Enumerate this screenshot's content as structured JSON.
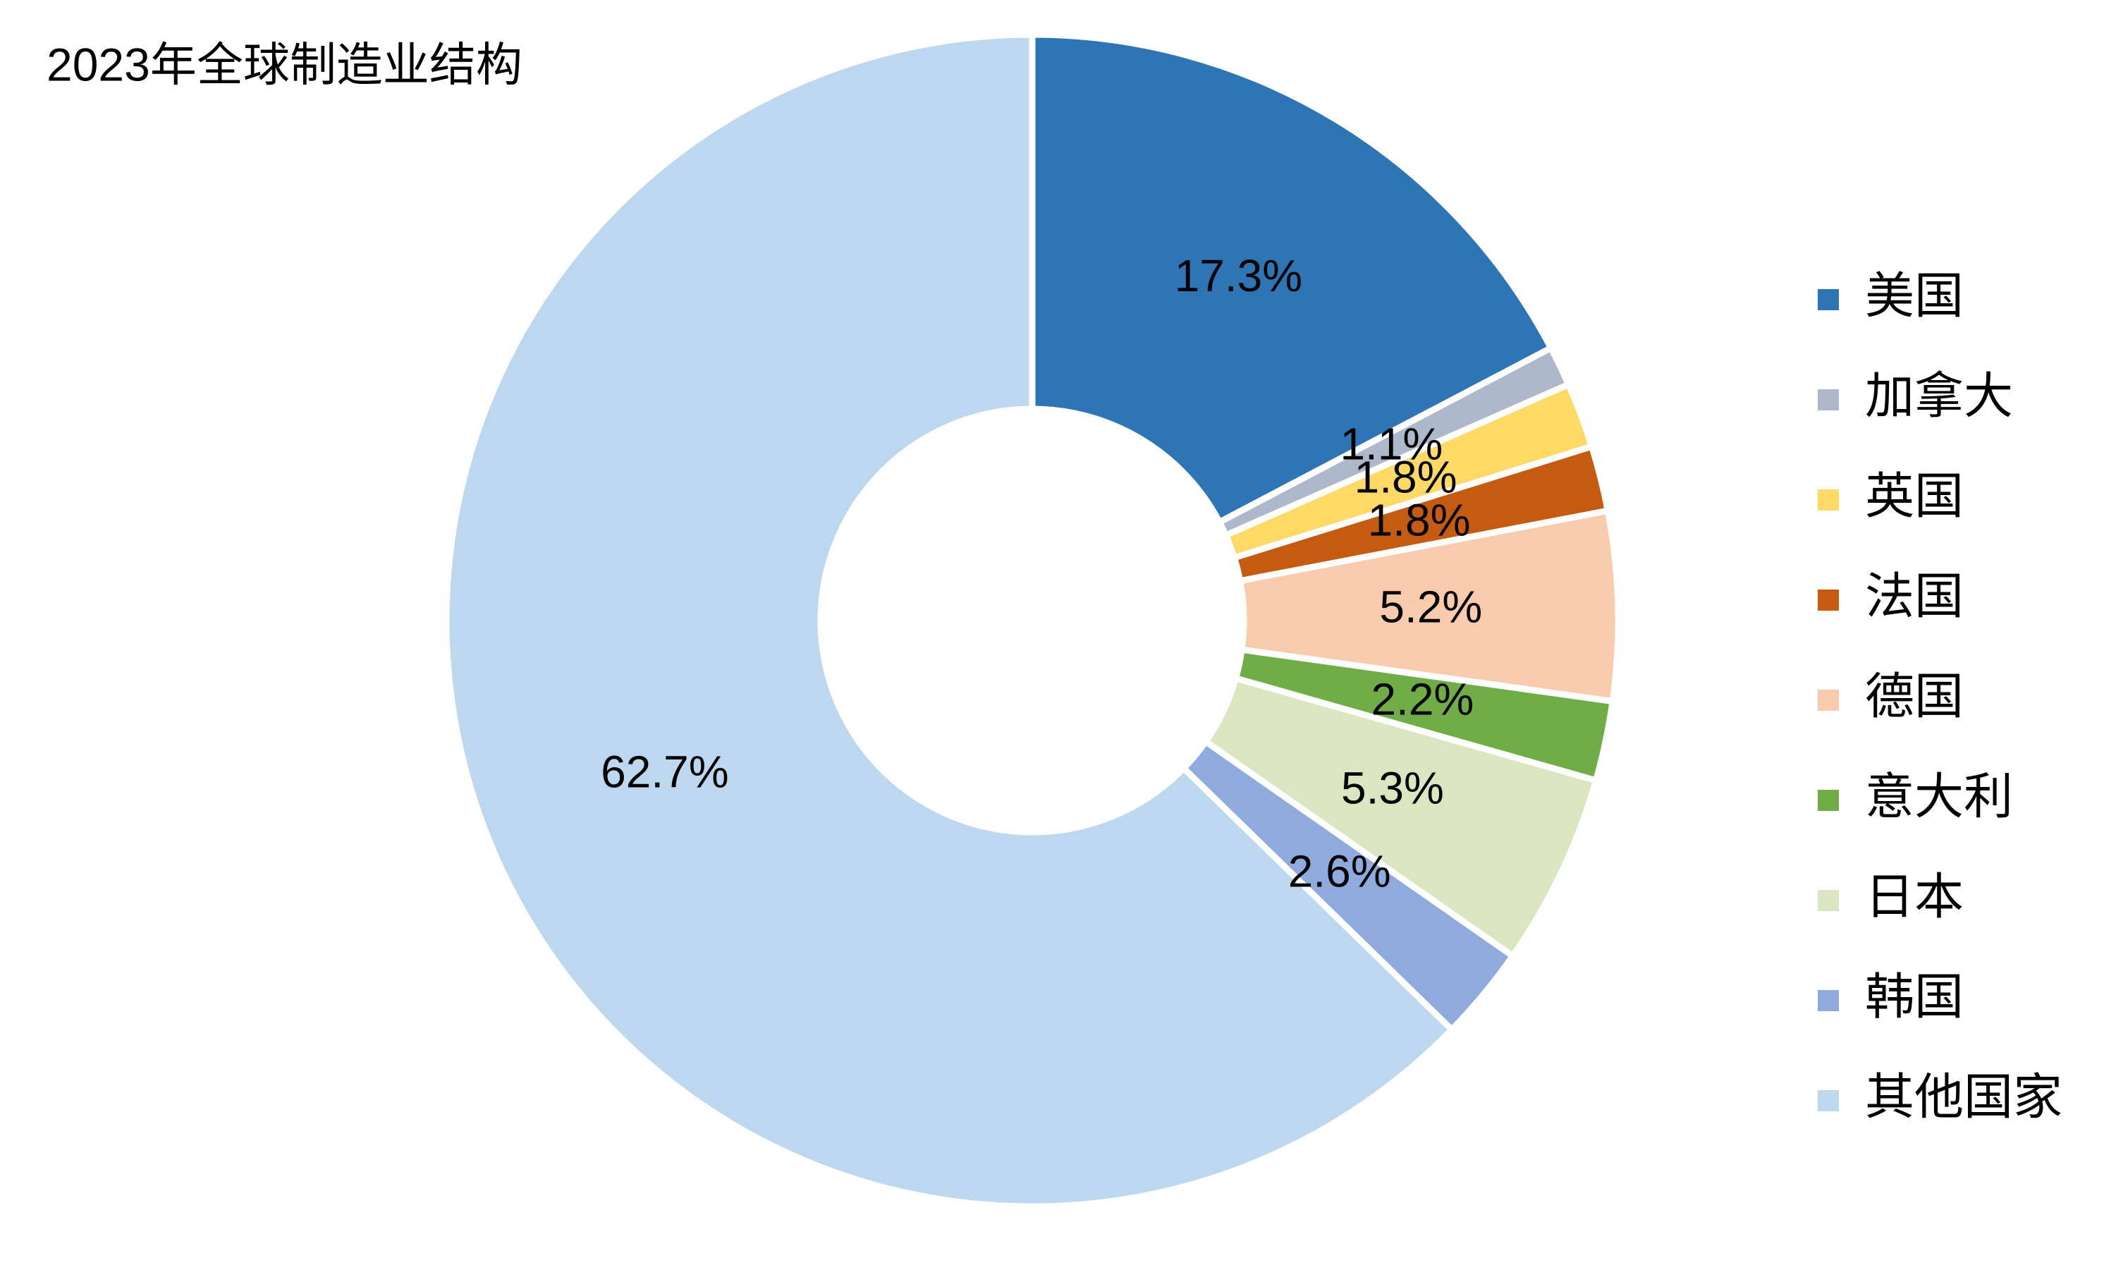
{
  "chart_data": {
    "type": "donut",
    "title": "2023年全球制造业结构",
    "categories": [
      "美国",
      "加拿大",
      "英国",
      "法国",
      "德国",
      "意大利",
      "日本",
      "韩国",
      "其他国家"
    ],
    "values": [
      17.3,
      1.1,
      1.8,
      1.8,
      5.2,
      2.2,
      5.3,
      2.6,
      62.7
    ],
    "value_labels": [
      "17.3%",
      "1.1%",
      "1.8%",
      "1.8%",
      "5.2%",
      "2.2%",
      "5.3%",
      "2.6%",
      "62.7%"
    ],
    "colors": [
      "#2e75b6",
      "#adb9ca",
      "#ffd966",
      "#c55a11",
      "#f8cbad",
      "#70ad47",
      "#d9e6c0",
      "#8faadc",
      "#bdd7ee"
    ],
    "legend": "right"
  }
}
